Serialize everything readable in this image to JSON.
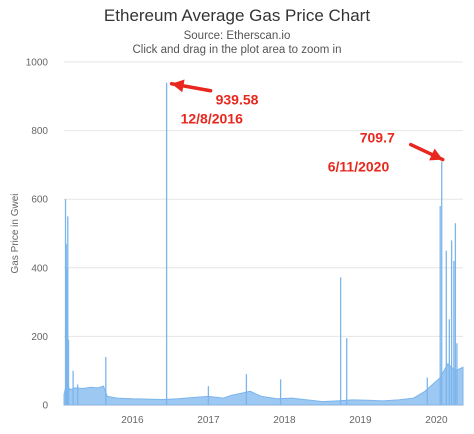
{
  "chart_data": {
    "type": "area",
    "title": "Ethereum Average Gas Price Chart",
    "subtitle": [
      "Source: Etherscan.io",
      "Click and drag in the plot area to zoom in"
    ],
    "ylabel": "Gas Price in Gwei",
    "xlabel": "",
    "ylim": [
      0,
      1000
    ],
    "yticks": [
      0,
      200,
      400,
      600,
      800,
      1000
    ],
    "xlim": [
      2015.6,
      2020.85
    ],
    "xticks": [
      2016,
      2017,
      2018,
      2019,
      2020
    ],
    "xtick_labels": [
      "2016",
      "2017",
      "2018",
      "2019",
      "2020"
    ],
    "grid": true,
    "series_color": "#7cb5ec",
    "baseline_points": [
      [
        2015.6,
        30
      ],
      [
        2015.63,
        60
      ],
      [
        2015.68,
        45
      ],
      [
        2015.75,
        50
      ],
      [
        2015.85,
        48
      ],
      [
        2015.95,
        52
      ],
      [
        2016.05,
        50
      ],
      [
        2016.12,
        55
      ],
      [
        2016.17,
        25
      ],
      [
        2016.3,
        20
      ],
      [
        2016.5,
        18
      ],
      [
        2016.75,
        17
      ],
      [
        2016.9,
        16
      ],
      [
        2017.1,
        18
      ],
      [
        2017.3,
        22
      ],
      [
        2017.5,
        25
      ],
      [
        2017.7,
        20
      ],
      [
        2017.8,
        28
      ],
      [
        2017.95,
        35
      ],
      [
        2018.05,
        40
      ],
      [
        2018.2,
        25
      ],
      [
        2018.4,
        18
      ],
      [
        2018.6,
        20
      ],
      [
        2018.8,
        15
      ],
      [
        2019.0,
        10
      ],
      [
        2019.2,
        12
      ],
      [
        2019.4,
        15
      ],
      [
        2019.6,
        14
      ],
      [
        2019.8,
        12
      ],
      [
        2020.0,
        15
      ],
      [
        2020.2,
        20
      ],
      [
        2020.35,
        40
      ],
      [
        2020.45,
        60
      ],
      [
        2020.55,
        80
      ],
      [
        2020.65,
        120
      ],
      [
        2020.75,
        100
      ],
      [
        2020.85,
        110
      ]
    ],
    "spikes": [
      [
        2015.62,
        600
      ],
      [
        2015.63,
        470
      ],
      [
        2015.65,
        550
      ],
      [
        2015.64,
        400
      ],
      [
        2015.66,
        190
      ],
      [
        2015.72,
        100
      ],
      [
        2015.78,
        60
      ],
      [
        2016.15,
        140
      ],
      [
        2016.95,
        939.58
      ],
      [
        2017.5,
        55
      ],
      [
        2018.0,
        90
      ],
      [
        2018.45,
        75
      ],
      [
        2019.24,
        372
      ],
      [
        2019.32,
        195
      ],
      [
        2020.38,
        80
      ],
      [
        2020.55,
        580
      ],
      [
        2020.57,
        709.7
      ],
      [
        2020.63,
        450
      ],
      [
        2020.67,
        250
      ],
      [
        2020.7,
        480
      ],
      [
        2020.73,
        420
      ],
      [
        2020.75,
        530
      ],
      [
        2020.77,
        180
      ]
    ],
    "annotations": [
      {
        "value": "939.58",
        "date": "12/8/2016",
        "x": 2016.95,
        "y": 939.58
      },
      {
        "value": "709.7",
        "date": "6/11/2020",
        "x": 2020.57,
        "y": 709.7
      }
    ],
    "annotation_color": "#e8281e"
  }
}
